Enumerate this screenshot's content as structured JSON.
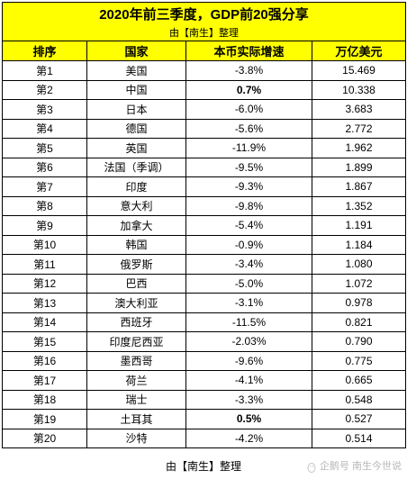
{
  "title": "2020年前三季度，GDP前20强分享",
  "subtitle": "由【南生】整理",
  "headers": [
    "排序",
    "国家",
    "本币实际增速",
    "万亿美元"
  ],
  "rows": [
    {
      "rank": "第1",
      "country": "美国",
      "growth": "-3.8%",
      "value": "15.469",
      "bold": false
    },
    {
      "rank": "第2",
      "country": "中国",
      "growth": "0.7%",
      "value": "10.338",
      "bold": true
    },
    {
      "rank": "第3",
      "country": "日本",
      "growth": "-6.0%",
      "value": "3.683",
      "bold": false
    },
    {
      "rank": "第4",
      "country": "德国",
      "growth": "-5.6%",
      "value": "2.772",
      "bold": false
    },
    {
      "rank": "第5",
      "country": "英国",
      "growth": "-11.9%",
      "value": "1.962",
      "bold": false
    },
    {
      "rank": "第6",
      "country": "法国（季调）",
      "growth": "-9.5%",
      "value": "1.899",
      "bold": false
    },
    {
      "rank": "第7",
      "country": "印度",
      "growth": "-9.3%",
      "value": "1.867",
      "bold": false
    },
    {
      "rank": "第8",
      "country": "意大利",
      "growth": "-9.8%",
      "value": "1.352",
      "bold": false
    },
    {
      "rank": "第9",
      "country": "加拿大",
      "growth": "-5.4%",
      "value": "1.191",
      "bold": false
    },
    {
      "rank": "第10",
      "country": "韩国",
      "growth": "-0.9%",
      "value": "1.184",
      "bold": false
    },
    {
      "rank": "第11",
      "country": "俄罗斯",
      "growth": "-3.4%",
      "value": "1.080",
      "bold": false
    },
    {
      "rank": "第12",
      "country": "巴西",
      "growth": "-5.0%",
      "value": "1.072",
      "bold": false
    },
    {
      "rank": "第13",
      "country": "澳大利亚",
      "growth": "-3.1%",
      "value": "0.978",
      "bold": false
    },
    {
      "rank": "第14",
      "country": "西班牙",
      "growth": "-11.5%",
      "value": "0.821",
      "bold": false
    },
    {
      "rank": "第15",
      "country": "印度尼西亚",
      "growth": "-2.03%",
      "value": "0.790",
      "bold": false
    },
    {
      "rank": "第16",
      "country": "墨西哥",
      "growth": "-9.6%",
      "value": "0.775",
      "bold": false
    },
    {
      "rank": "第17",
      "country": "荷兰",
      "growth": "-4.1%",
      "value": "0.665",
      "bold": false
    },
    {
      "rank": "第18",
      "country": "瑞士",
      "growth": "-3.3%",
      "value": "0.548",
      "bold": false
    },
    {
      "rank": "第19",
      "country": "土耳其",
      "growth": "0.5%",
      "value": "0.527",
      "bold": true
    },
    {
      "rank": "第20",
      "country": "沙特",
      "growth": "-4.2%",
      "value": "0.514",
      "bold": false
    }
  ],
  "footer": "由【南生】整理",
  "watermark": "企鹅号 南生今世说",
  "colors": {
    "header_bg": "#ffff00",
    "border": "#000000",
    "watermark": "#b8b8b8"
  }
}
